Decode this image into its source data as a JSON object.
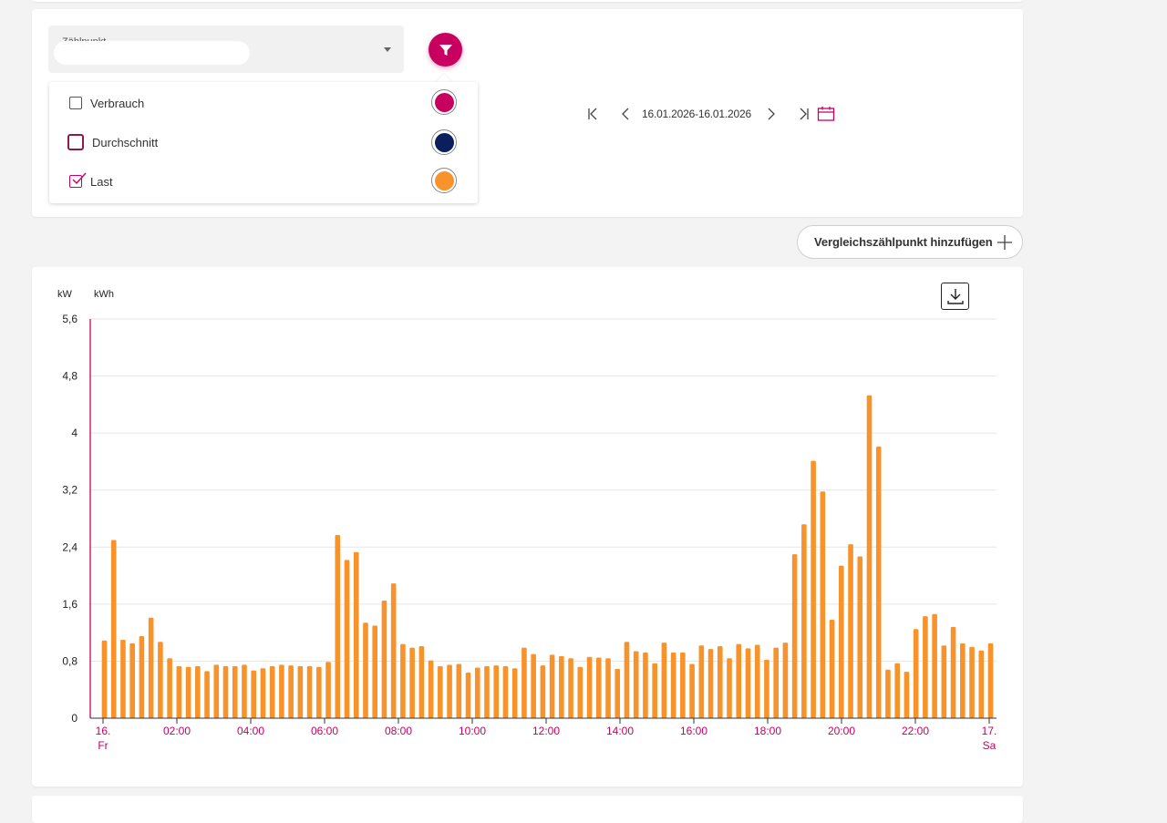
{
  "filter": {
    "meter_label": "Zählpunkt",
    "meter_value": "",
    "options": [
      {
        "label": "Verbrauch",
        "checked": false,
        "color": "#c8005f"
      },
      {
        "label": "Durchschnitt",
        "checked": false,
        "color": "#0a1f5c"
      },
      {
        "label": "Last",
        "checked": true,
        "color": "#f7932a"
      }
    ]
  },
  "date_range": "16.01.2026-16.01.2026",
  "compare_label": "Vergleichszählpunkt hinzufügen",
  "icons": {
    "filter": "filter-icon",
    "first": "first-page-icon",
    "prev": "chevron-left-icon",
    "next": "chevron-right-icon",
    "last": "last-page-icon",
    "calendar": "calendar-icon",
    "add": "plus-icon",
    "download": "download-icon"
  },
  "colors": {
    "accent": "#c8005f",
    "bar": "#f7932a",
    "navy": "#0a1f5c"
  },
  "chart_data": {
    "type": "bar",
    "unit_labels": [
      "kW",
      "kWh"
    ],
    "ylim": [
      0,
      5.6
    ],
    "yticks": [
      "0",
      "0,8",
      "1,6",
      "2,4",
      "3,2",
      "4",
      "4,8",
      "5,6"
    ],
    "xlim": [
      0,
      24
    ],
    "xticks": [
      {
        "x": 0,
        "label": "16.",
        "sub": "Fr"
      },
      {
        "x": 2,
        "label": "02:00"
      },
      {
        "x": 4,
        "label": "04:00"
      },
      {
        "x": 6,
        "label": "06:00"
      },
      {
        "x": 8,
        "label": "08:00"
      },
      {
        "x": 10,
        "label": "10:00"
      },
      {
        "x": 12,
        "label": "12:00"
      },
      {
        "x": 14,
        "label": "14:00"
      },
      {
        "x": 16,
        "label": "16:00"
      },
      {
        "x": 18,
        "label": "18:00"
      },
      {
        "x": 20,
        "label": "20:00"
      },
      {
        "x": 22,
        "label": "22:00"
      },
      {
        "x": 24,
        "label": "17.",
        "sub": "Sa"
      }
    ],
    "grid": true,
    "series": [
      {
        "name": "Last",
        "color": "#f7932a",
        "values": [
          1.09,
          2.5,
          1.1,
          1.05,
          1.15,
          1.41,
          1.07,
          0.84,
          0.73,
          0.72,
          0.73,
          0.66,
          0.75,
          0.73,
          0.73,
          0.75,
          0.67,
          0.7,
          0.73,
          0.75,
          0.74,
          0.73,
          0.73,
          0.72,
          0.79,
          2.57,
          2.22,
          2.33,
          1.34,
          1.3,
          1.65,
          1.89,
          1.04,
          0.99,
          1.01,
          0.81,
          0.73,
          0.75,
          0.76,
          0.64,
          0.71,
          0.73,
          0.74,
          0.73,
          0.7,
          0.99,
          0.9,
          0.74,
          0.89,
          0.87,
          0.84,
          0.72,
          0.86,
          0.85,
          0.84,
          0.69,
          1.07,
          0.94,
          0.92,
          0.77,
          1.06,
          0.92,
          0.92,
          0.76,
          1.02,
          0.97,
          1.01,
          0.84,
          1.04,
          0.98,
          1.03,
          0.82,
          0.99,
          1.06,
          2.3,
          2.72,
          3.61,
          3.18,
          1.38,
          2.14,
          2.44,
          2.27,
          4.53,
          3.81,
          0.68,
          0.77,
          0.65,
          1.25,
          1.43,
          1.46,
          1.02,
          1.28,
          1.05,
          1.0,
          0.95,
          1.05
        ]
      }
    ]
  }
}
